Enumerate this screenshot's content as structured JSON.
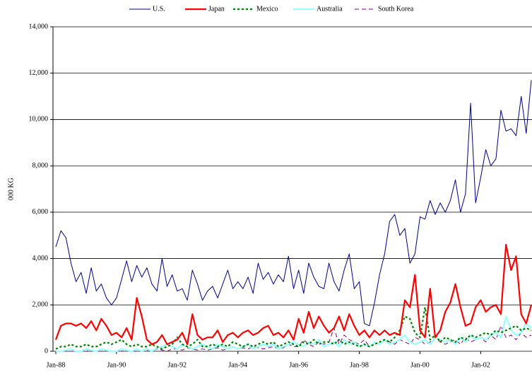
{
  "chart_data": {
    "type": "line",
    "y_label": "000 KG",
    "categories": [
      "Jan-88",
      null,
      null,
      null,
      null,
      null,
      null,
      null,
      null,
      null,
      null,
      null,
      "Jan-90",
      null,
      null,
      null,
      null,
      null,
      null,
      null,
      null,
      null,
      null,
      null,
      "Jan-92",
      null,
      null,
      null,
      null,
      null,
      null,
      null,
      null,
      null,
      null,
      null,
      "Jan-94",
      null,
      null,
      null,
      null,
      null,
      null,
      null,
      null,
      null,
      null,
      null,
      "Jan-96",
      null,
      null,
      null,
      null,
      null,
      null,
      null,
      null,
      null,
      null,
      null,
      "Jan-98",
      null,
      null,
      null,
      null,
      null,
      null,
      null,
      null,
      null,
      null,
      null,
      "Jan-00",
      null,
      null,
      null,
      null,
      null,
      null,
      null,
      null,
      null,
      null,
      null,
      "Jan-02",
      null,
      null,
      null,
      null,
      null,
      null,
      null,
      null,
      null,
      null
    ],
    "series": [
      {
        "name": "U.S.",
        "color": "#000080",
        "width": 1,
        "dash": "none",
        "values": [
          4500,
          5200,
          4900,
          3800,
          3000,
          3400,
          2500,
          3600,
          2600,
          2900,
          2300,
          2000,
          2300,
          3100,
          3900,
          3000,
          3700,
          3200,
          3600,
          2900,
          2600,
          4000,
          2800,
          3300,
          2600,
          2700,
          2200,
          3500,
          2900,
          2200,
          2600,
          2800,
          2300,
          2900,
          3500,
          2700,
          3000,
          2700,
          3200,
          2500,
          3800,
          3100,
          3400,
          2900,
          3300,
          3000,
          4100,
          2700,
          3500,
          2500,
          3800,
          3200,
          2800,
          2700,
          3800,
          3000,
          2600,
          3500,
          4200,
          2700,
          3000,
          1200,
          1100,
          2100,
          3300,
          4200,
          5600,
          5900,
          5000,
          5300,
          3800,
          4200,
          5800,
          5700,
          6500,
          5900,
          6400,
          6000,
          6500,
          7400,
          6000,
          6800,
          10700,
          6400,
          7500,
          8700,
          8000,
          8300,
          10400,
          9500,
          9600,
          9300,
          11000,
          9400,
          11700
        ]
      },
      {
        "name": "Japan",
        "color": "#ff0000",
        "width": 2.2,
        "dash": "none",
        "values": [
          500,
          1100,
          1200,
          1200,
          1100,
          1200,
          1000,
          1300,
          900,
          1400,
          1100,
          700,
          800,
          600,
          1000,
          500,
          2300,
          1500,
          500,
          300,
          400,
          700,
          300,
          400,
          500,
          800,
          300,
          1600,
          700,
          500,
          600,
          600,
          900,
          400,
          700,
          800,
          600,
          800,
          900,
          700,
          800,
          1000,
          1100,
          700,
          800,
          600,
          900,
          500,
          1400,
          800,
          1700,
          1000,
          1500,
          1100,
          800,
          1000,
          1500,
          900,
          1600,
          1100,
          700,
          900,
          600,
          900,
          700,
          900,
          700,
          800,
          700,
          2200,
          1900,
          3300,
          900,
          600,
          2700,
          600,
          900,
          1700,
          2100,
          2900,
          1900,
          1100,
          1200,
          1900,
          2200,
          1700,
          1900,
          2000,
          1600,
          4600,
          3500,
          4100,
          1600,
          1200,
          2000
        ]
      },
      {
        "name": "Mexico",
        "color": "#008000",
        "width": 2.2,
        "dash": "3,3",
        "values": [
          100,
          200,
          200,
          300,
          200,
          200,
          300,
          200,
          200,
          300,
          400,
          300,
          400,
          500,
          300,
          200,
          300,
          200,
          200,
          300,
          200,
          100,
          200,
          300,
          600,
          300,
          200,
          300,
          500,
          200,
          200,
          300,
          200,
          300,
          200,
          400,
          300,
          200,
          300,
          200,
          300,
          400,
          300,
          400,
          200,
          300,
          400,
          300,
          200,
          400,
          300,
          500,
          300,
          400,
          400,
          300,
          500,
          300,
          400,
          300,
          200,
          300,
          200,
          300,
          400,
          500,
          400,
          600,
          900,
          1500,
          1400,
          800,
          600,
          1900,
          500,
          700,
          400,
          600,
          500,
          400,
          600,
          500,
          700,
          600,
          700,
          800,
          700,
          900,
          800,
          900,
          1000,
          1100,
          900,
          1000,
          900
        ]
      },
      {
        "name": "Australia",
        "color": "#99ffff",
        "width": 2.2,
        "dash": "none",
        "values": [
          0,
          0,
          50,
          100,
          0,
          0,
          100,
          50,
          0,
          100,
          50,
          0,
          0,
          100,
          50,
          0,
          100,
          0,
          100,
          0,
          150,
          200,
          300,
          200,
          100,
          300,
          200,
          100,
          200,
          300,
          200,
          100,
          300,
          200,
          100,
          200,
          100,
          200,
          300,
          100,
          200,
          300,
          200,
          300,
          100,
          200,
          300,
          400,
          300,
          200,
          400,
          300,
          500,
          200,
          300,
          400,
          200,
          500,
          300,
          400,
          200,
          300,
          200,
          400,
          300,
          500,
          300,
          400,
          500,
          700,
          400,
          300,
          400,
          500,
          300,
          600,
          500,
          400,
          500,
          300,
          600,
          400,
          700,
          500,
          600,
          500,
          700,
          800,
          600,
          1500,
          900,
          700,
          800,
          1200,
          1000
        ]
      },
      {
        "name": "South Korea",
        "color": "#800080",
        "width": 1,
        "dash": "6,4",
        "values": [
          0,
          0,
          0,
          0,
          0,
          0,
          0,
          50,
          0,
          0,
          50,
          0,
          0,
          0,
          50,
          0,
          0,
          0,
          50,
          0,
          100,
          50,
          0,
          100,
          100,
          50,
          150,
          100,
          50,
          100,
          50,
          100,
          150,
          50,
          100,
          200,
          100,
          150,
          100,
          200,
          150,
          100,
          150,
          200,
          100,
          150,
          300,
          200,
          200,
          500,
          300,
          200,
          400,
          300,
          400,
          1000,
          300,
          700,
          500,
          400,
          300,
          500,
          200,
          400,
          300,
          500,
          400,
          300,
          500,
          400,
          300,
          600,
          500,
          300,
          400,
          600,
          400,
          300,
          400,
          500,
          300,
          600,
          400,
          500,
          600,
          400,
          700,
          500,
          1100,
          600,
          700,
          500,
          800,
          600,
          700
        ]
      }
    ],
    "ylim": [
      0,
      14000
    ],
    "yticks": [
      0,
      {
        "value": 2000,
        "label": "2,000"
      },
      {
        "value": 4000,
        "label": "4,000"
      },
      {
        "value": 6000,
        "label": "6,000"
      },
      {
        "value": 8000,
        "label": "8,000"
      },
      {
        "value": 10000,
        "label": "10,000"
      },
      {
        "value": 12000,
        "label": "12,000"
      },
      {
        "value": 14000,
        "label": "14,000"
      }
    ],
    "grid": true,
    "legend": "top"
  }
}
